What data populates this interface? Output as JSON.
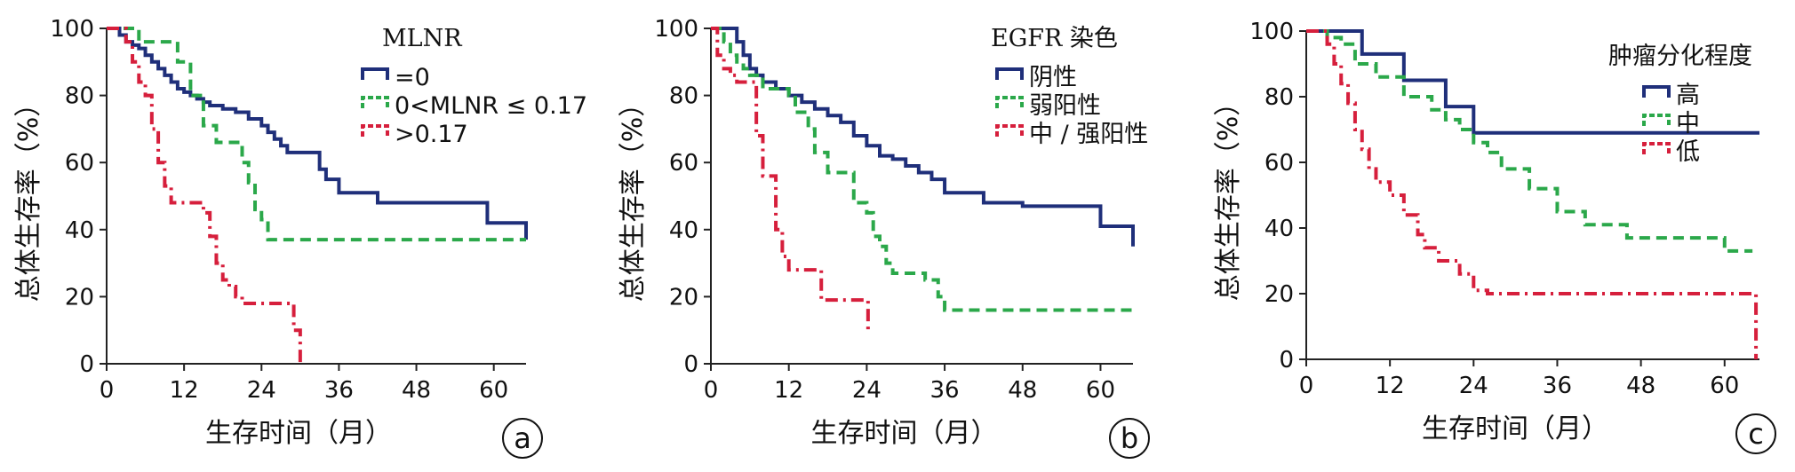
{
  "chart_data": [
    {
      "type": "line",
      "panel_label": "a",
      "xlabel": "生存时间（月）",
      "ylabel": "总体生存率（%）",
      "xlim": [
        0,
        65
      ],
      "ylim": [
        0,
        100
      ],
      "x_ticks": [
        0,
        12,
        24,
        36,
        48,
        60
      ],
      "y_ticks": [
        0,
        20,
        40,
        60,
        80,
        100
      ],
      "legend_title": "MLNR",
      "legend_position": "top-right",
      "series": [
        {
          "name": "=0",
          "color": "#1f2f7a",
          "style": "solid",
          "x": [
            0,
            2,
            3,
            4,
            5,
            6,
            7,
            8,
            9,
            10,
            11,
            12,
            13,
            14,
            15,
            16,
            18,
            20,
            22,
            24,
            25,
            26,
            27,
            28,
            30,
            33,
            34,
            36,
            42,
            48,
            59,
            65
          ],
          "y": [
            100,
            98,
            96,
            95,
            94,
            92,
            90,
            88,
            86,
            84,
            82,
            81,
            80,
            79,
            78,
            77,
            76,
            75,
            73,
            71,
            69,
            67,
            65,
            63,
            63,
            58,
            55,
            51,
            48,
            48,
            42,
            37
          ]
        },
        {
          "name": "0<MLNR ≤ 0.17",
          "color": "#2ba84a",
          "style": "dashed",
          "x": [
            0,
            5,
            10,
            11,
            13,
            15,
            17,
            21,
            22,
            23,
            24,
            25,
            65
          ],
          "y": [
            100,
            96,
            96,
            90,
            80,
            71,
            66,
            60,
            54,
            46,
            43,
            37,
            37
          ]
        },
        {
          "name": ">0.17",
          "color": "#d61f3c",
          "style": "dashdot",
          "x": [
            0,
            3,
            4,
            5,
            6,
            7,
            8,
            9,
            10,
            11,
            15,
            16,
            17,
            18,
            19,
            20,
            21,
            22,
            24,
            29,
            30
          ],
          "y": [
            100,
            96,
            90,
            84,
            80,
            70,
            60,
            53,
            48,
            48,
            45,
            38,
            30,
            25,
            23,
            20,
            18,
            18,
            18,
            10,
            0
          ]
        }
      ]
    },
    {
      "type": "line",
      "panel_label": "b",
      "xlabel": "生存时间（月）",
      "ylabel": "总体生存率（%）",
      "xlim": [
        0,
        65
      ],
      "ylim": [
        0,
        100
      ],
      "x_ticks": [
        0,
        12,
        24,
        36,
        48,
        60
      ],
      "y_ticks": [
        0,
        20,
        40,
        60,
        80,
        100
      ],
      "legend_title": "EGFR 染色",
      "legend_position": "top-right",
      "series": [
        {
          "name": "阴性",
          "color": "#1f2f7a",
          "style": "solid",
          "x": [
            0,
            3,
            4,
            5,
            6,
            7,
            8,
            10,
            12,
            14,
            16,
            18,
            20,
            22,
            24,
            26,
            28,
            30,
            32,
            34,
            36,
            42,
            48,
            58,
            60,
            64,
            65
          ],
          "y": [
            100,
            100,
            96,
            92,
            88,
            86,
            84,
            82,
            80,
            78,
            76,
            74,
            72,
            68,
            65,
            62,
            61,
            59,
            57,
            55,
            51,
            48,
            47,
            47,
            41,
            41,
            35
          ]
        },
        {
          "name": "弱阳性",
          "color": "#2ba84a",
          "style": "dashed",
          "x": [
            0,
            2,
            3,
            4,
            5,
            6,
            8,
            12,
            13,
            15,
            16,
            18,
            20,
            22,
            24,
            25,
            26,
            27,
            28,
            30,
            33,
            35,
            36,
            65
          ],
          "y": [
            100,
            96,
            92,
            90,
            88,
            86,
            82,
            80,
            75,
            70,
            63,
            57,
            57,
            48,
            45,
            38,
            35,
            30,
            27,
            27,
            25,
            20,
            16,
            16
          ]
        },
        {
          "name": "中 / 强阳性",
          "color": "#d61f3c",
          "style": "dashdot",
          "x": [
            0,
            1,
            2,
            3,
            4,
            6,
            7,
            8,
            10,
            11,
            12,
            16,
            17,
            20,
            24,
            24.2
          ],
          "y": [
            100,
            92,
            88,
            86,
            84,
            84,
            68,
            56,
            40,
            32,
            28,
            28,
            19,
            19,
            19,
            9
          ]
        }
      ]
    },
    {
      "type": "line",
      "panel_label": "c",
      "xlabel": "生存时间（月）",
      "ylabel": "总体生存率（%）",
      "xlim": [
        0,
        65
      ],
      "ylim": [
        0,
        100
      ],
      "x_ticks": [
        0,
        12,
        24,
        36,
        48,
        60
      ],
      "y_ticks": [
        0,
        20,
        40,
        60,
        80,
        100
      ],
      "legend_title": "肿瘤分化程度",
      "legend_position": "top-right",
      "series": [
        {
          "name": "高",
          "color": "#1f2f7a",
          "style": "solid",
          "x": [
            0,
            8,
            14,
            20,
            22,
            24,
            65
          ],
          "y": [
            100,
            93,
            85,
            77,
            77,
            69,
            69
          ]
        },
        {
          "name": "中",
          "color": "#2ba84a",
          "style": "dashed",
          "x": [
            0,
            3,
            5,
            7,
            10,
            14,
            18,
            20,
            22,
            24,
            26,
            28,
            32,
            36,
            40,
            46,
            58,
            60,
            64
          ],
          "y": [
            100,
            98,
            96,
            90,
            86,
            80,
            76,
            73,
            70,
            66,
            63,
            58,
            52,
            45,
            41,
            37,
            37,
            33,
            33
          ]
        },
        {
          "name": "低",
          "color": "#d61f3c",
          "style": "dashdot",
          "x": [
            0,
            3,
            4,
            5,
            6,
            7,
            8,
            9,
            10,
            12,
            14,
            16,
            17,
            19,
            22,
            24,
            26,
            64,
            64.5
          ],
          "y": [
            100,
            96,
            90,
            84,
            78,
            70,
            64,
            58,
            54,
            50,
            44,
            38,
            34,
            30,
            26,
            21,
            20,
            20,
            0
          ]
        }
      ]
    }
  ]
}
